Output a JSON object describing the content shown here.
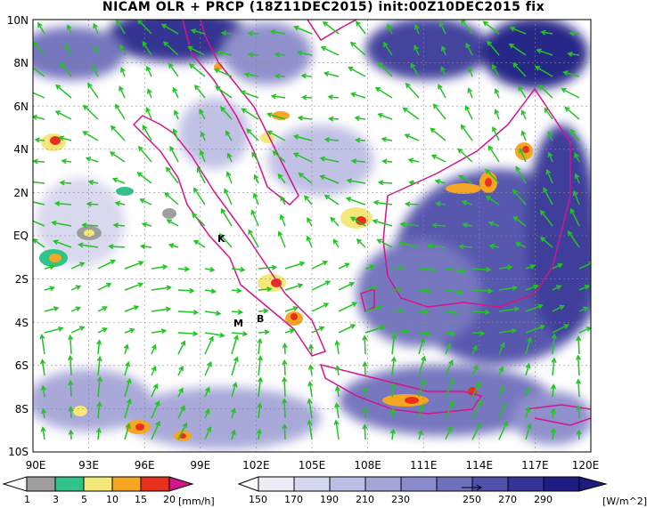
{
  "title": "NICAM OLR + PRCP (18Z11DEC2015) init:00Z10DEC2015 fix",
  "y_axis_labels": [
    "10N",
    "8N",
    "6N",
    "4N",
    "2N",
    "EQ",
    "2S",
    "4S",
    "6S",
    "8S",
    "10S"
  ],
  "x_axis_labels": [
    "90E",
    "93E",
    "96E",
    "99E",
    "102E",
    "105E",
    "108E",
    "111E",
    "114E",
    "117E",
    "120E"
  ],
  "prcp_scale": {
    "ticks": [
      "1",
      "3",
      "5",
      "10",
      "15",
      "20"
    ],
    "unit": "[mm/h]",
    "colors": [
      "#ffffff",
      "#9e9e9e",
      "#2ec48a",
      "#f5e87a",
      "#f5a623",
      "#e8301c",
      "#d4148c"
    ]
  },
  "olr_scale": {
    "ticks": [
      "150",
      "170",
      "190",
      "210",
      "230",
      "250",
      "270",
      "290"
    ],
    "unit": "[W/m^2]",
    "colors": [
      "#ffffff",
      "#ececf7",
      "#d6d6ee",
      "#bebee4",
      "#a5a5d8",
      "#8b8bcb",
      "#6f6fbc",
      "#5050aa",
      "#343496",
      "#1c1c82"
    ]
  },
  "sites": [
    {
      "label": "K"
    },
    {
      "label": "M"
    },
    {
      "label": "B"
    }
  ],
  "colors": {
    "coast": "#d4148c",
    "wind": "#22c422",
    "grid": "#888888"
  }
}
